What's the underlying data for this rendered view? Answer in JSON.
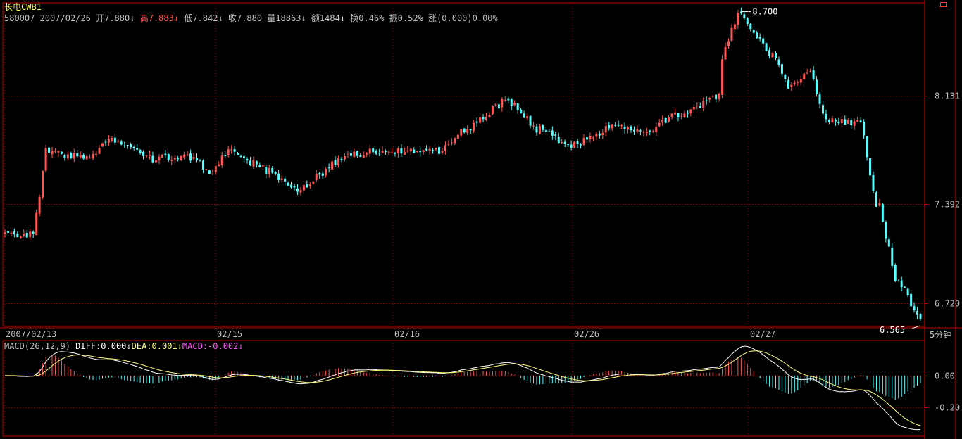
{
  "header": {
    "title": "长电CWB1",
    "code": "580007",
    "date": "2007/02/26",
    "open_label": "开",
    "open_value": "7.880",
    "high_label": "高",
    "high_value": "7.883",
    "low_label": "低",
    "low_value": "7.842",
    "close_label": "收",
    "close_value": "7.880",
    "volume_label": "量",
    "volume_value": "18863",
    "amount_label": "额",
    "amount_value": "1484",
    "turnover_label": "换",
    "turnover_value": "0.46%",
    "amplitude_label": "振",
    "amplitude_value": "0.52%",
    "change_label": "涨",
    "change_value": "(0.000)0.00%",
    "corner_icon": "restore-window-icon"
  },
  "period_label": "5分钟",
  "macd_legend": {
    "name": "MACD(26,12,9)",
    "diff": "DIFF:0.000",
    "dea": "DEA:0.001",
    "macd": "MACD:-0.002"
  },
  "colors": {
    "up": "#ff5555",
    "down": "#55ffff",
    "grid": "#a00000",
    "axis": "#c00000",
    "text": "#c0c0c0",
    "title": "#ffff55",
    "dea": "#ffff80",
    "macd_label": "#ff55ff"
  },
  "chart_data": [
    {
      "type": "candlestick",
      "x_labels": [
        "2007/02/13",
        "02/15",
        "02/16",
        "02/26",
        "02/27"
      ],
      "y_ticks": [
        "8.131",
        "7.392",
        "6.720"
      ],
      "ylim": [
        6.56,
        8.76
      ],
      "annotations": [
        {
          "text": "8.700",
          "value": 8.7,
          "note": "max"
        },
        {
          "text": "6.565",
          "value": 6.565,
          "note": "min"
        }
      ],
      "segments": [
        {
          "start": 7.2,
          "end": 7.18,
          "n": 10
        },
        {
          "start": 7.32,
          "end": 7.75,
          "n": 4
        },
        {
          "start": 7.75,
          "end": 7.71,
          "n": 12
        },
        {
          "start": 7.71,
          "end": 7.82,
          "n": 8
        },
        {
          "start": 7.82,
          "end": 7.7,
          "n": 14
        },
        {
          "start": 7.7,
          "end": 7.72,
          "n": 10
        },
        {
          "start": 7.72,
          "end": 7.62,
          "n": 8
        },
        {
          "start": 7.62,
          "end": 7.75,
          "n": 6
        },
        {
          "start": 7.75,
          "end": 7.62,
          "n": 12
        },
        {
          "start": 7.62,
          "end": 7.49,
          "n": 10
        },
        {
          "start": 7.49,
          "end": 7.71,
          "n": 14
        },
        {
          "start": 7.71,
          "end": 7.76,
          "n": 12
        },
        {
          "start": 7.76,
          "end": 7.75,
          "n": 18
        },
        {
          "start": 7.75,
          "end": 7.88,
          "n": 8
        },
        {
          "start": 7.88,
          "end": 8.1,
          "n": 14
        },
        {
          "start": 8.1,
          "end": 7.9,
          "n": 10
        },
        {
          "start": 7.9,
          "end": 7.78,
          "n": 10
        },
        {
          "start": 7.78,
          "end": 7.92,
          "n": 14
        },
        {
          "start": 7.92,
          "end": 7.87,
          "n": 10
        },
        {
          "start": 7.87,
          "end": 8.0,
          "n": 10
        },
        {
          "start": 8.0,
          "end": 8.12,
          "n": 14
        },
        {
          "start": 8.4,
          "end": 8.68,
          "n": 6
        },
        {
          "start": 8.68,
          "end": 8.4,
          "n": 10
        },
        {
          "start": 8.4,
          "end": 8.2,
          "n": 6
        },
        {
          "start": 8.2,
          "end": 8.3,
          "n": 6
        },
        {
          "start": 8.3,
          "end": 7.95,
          "n": 6
        },
        {
          "start": 7.95,
          "end": 7.95,
          "n": 10
        },
        {
          "start": 7.95,
          "end": 7.38,
          "n": 6
        },
        {
          "start": 7.38,
          "end": 6.88,
          "n": 6
        },
        {
          "start": 6.88,
          "end": 6.6,
          "n": 8
        }
      ]
    },
    {
      "type": "macd",
      "params": "26,12,9",
      "y_ticks": [
        "0.00",
        "-0.20"
      ],
      "values": {
        "DIFF": 0.0,
        "DEA": 0.001,
        "MACD": -0.002
      }
    }
  ]
}
